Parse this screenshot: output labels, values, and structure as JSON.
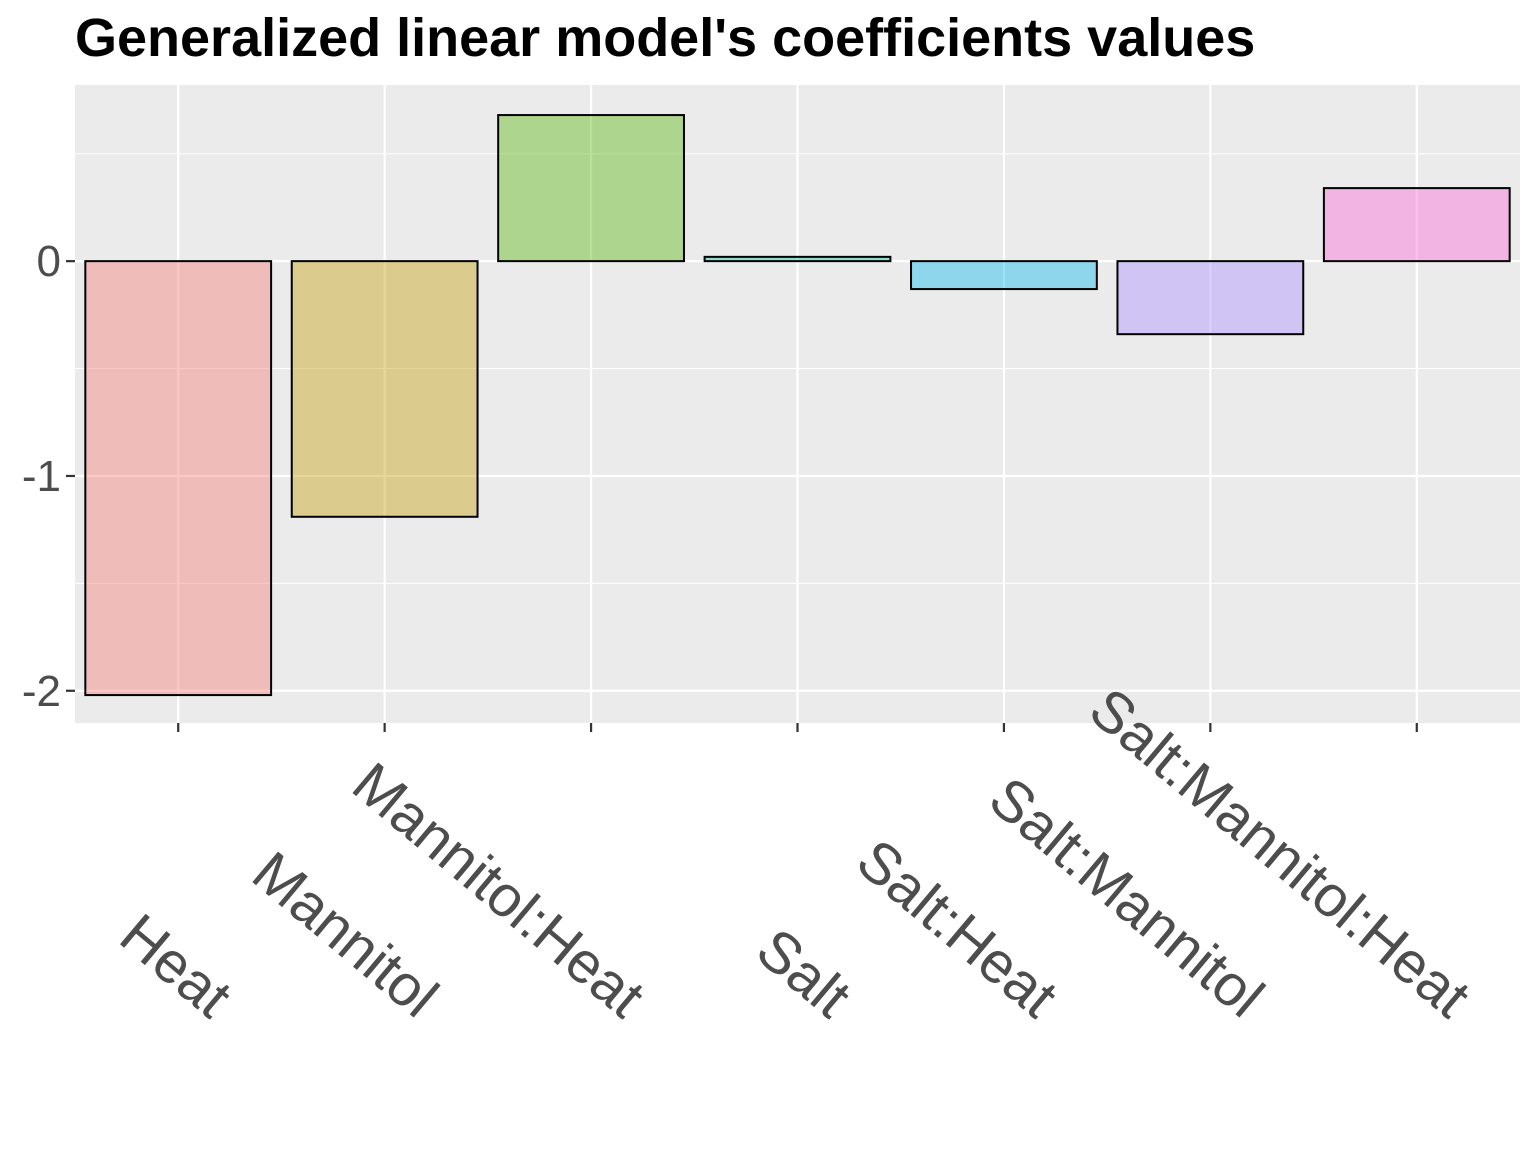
{
  "chart_data": {
    "type": "bar",
    "title": "Generalized linear model's coefficients values",
    "xlabel": "",
    "ylabel": "",
    "categories": [
      "Heat",
      "Mannitol",
      "Mannitol:Heat",
      "Salt",
      "Salt:Heat",
      "Salt:Mannitol",
      "Salt:Mannitol:Heat"
    ],
    "values": [
      -2.02,
      -1.19,
      0.68,
      0.02,
      -0.13,
      -0.34,
      0.34
    ],
    "colors": [
      "#F8766D",
      "#C49A00",
      "#53B400",
      "#00C094",
      "#00B6EB",
      "#A58AFF",
      "#FB61D7"
    ],
    "ylim": [
      -2.15,
      0.82
    ],
    "yticks": [
      -2,
      -1,
      0
    ],
    "ytick_labels": [
      "-2",
      "-1",
      "0"
    ],
    "grid": true,
    "panel_background": "#EBEBEB",
    "legend": "none"
  }
}
